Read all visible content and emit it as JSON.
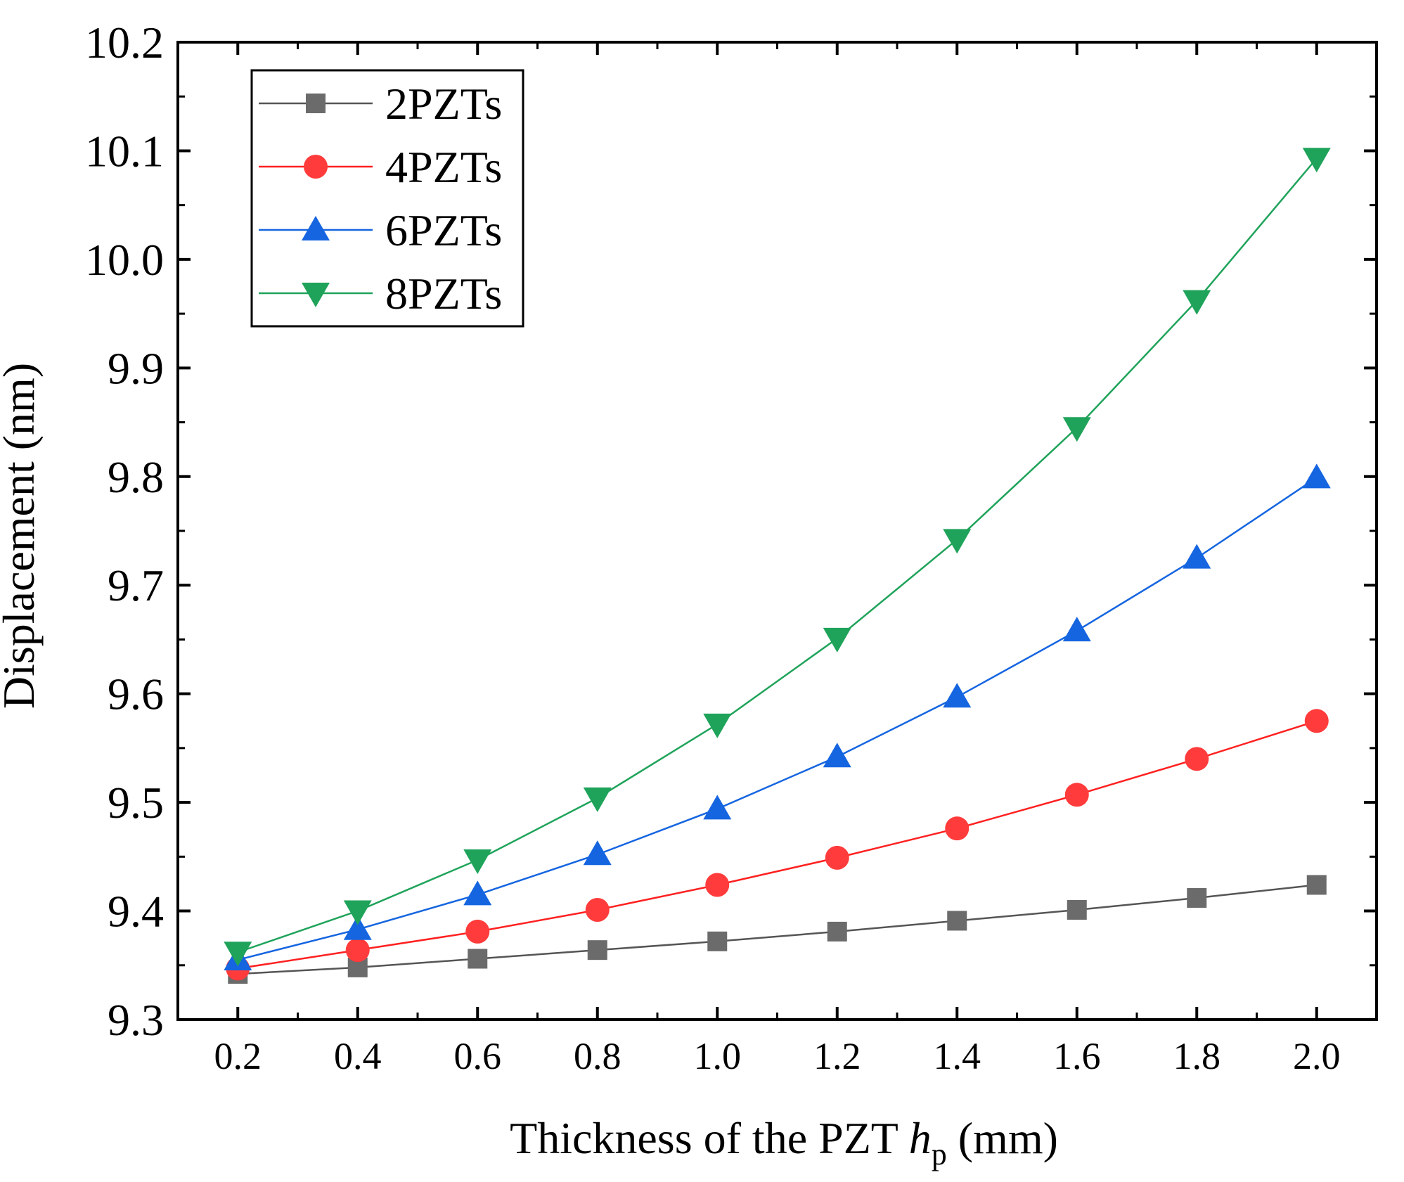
{
  "chart_data": {
    "type": "line",
    "title": "",
    "xlabel": "Thickness of the PZT ",
    "xlabel_italic": "h",
    "xlabel_sub": "p",
    "xlabel_unit": " (mm)",
    "ylabel": "Displacement (nm)",
    "xlim": [
      0.1,
      2.1
    ],
    "ylim": [
      9.3,
      10.2
    ],
    "x_ticks": [
      "0.2",
      "0.4",
      "0.6",
      "0.8",
      "1.0",
      "1.2",
      "1.4",
      "1.6",
      "1.8",
      "2.0"
    ],
    "y_ticks": [
      "9.3",
      "9.4",
      "9.5",
      "9.6",
      "9.7",
      "9.8",
      "9.9",
      "10.0",
      "10.1",
      "10.2"
    ],
    "x": [
      0.2,
      0.4,
      0.6,
      0.8,
      1.0,
      1.2,
      1.4,
      1.6,
      1.8,
      2.0
    ],
    "grid": false,
    "legend_position": "top-left",
    "series": [
      {
        "name": "2PZTs",
        "marker": "square",
        "color": "#6b6b6b",
        "line_color": "#555555",
        "values": [
          9.342,
          9.348,
          9.356,
          9.364,
          9.372,
          9.381,
          9.391,
          9.401,
          9.412,
          9.424
        ]
      },
      {
        "name": "4PZTs",
        "marker": "circle",
        "color": "#ff3b3b",
        "line_color": "#ff2020",
        "values": [
          9.347,
          9.364,
          9.381,
          9.401,
          9.424,
          9.449,
          9.476,
          9.507,
          9.54,
          9.575
        ]
      },
      {
        "name": "6PZTs",
        "marker": "triangle-up",
        "color": "#1565e0",
        "line_color": "#1565e0",
        "values": [
          9.355,
          9.383,
          9.415,
          9.452,
          9.494,
          9.542,
          9.597,
          9.658,
          9.725,
          9.799
        ]
      },
      {
        "name": "8PZTs",
        "marker": "triangle-down",
        "color": "#1fa35a",
        "line_color": "#1fa35a",
        "values": [
          9.362,
          9.4,
          9.447,
          9.504,
          9.572,
          9.651,
          9.742,
          9.845,
          9.962,
          10.093
        ]
      }
    ]
  }
}
